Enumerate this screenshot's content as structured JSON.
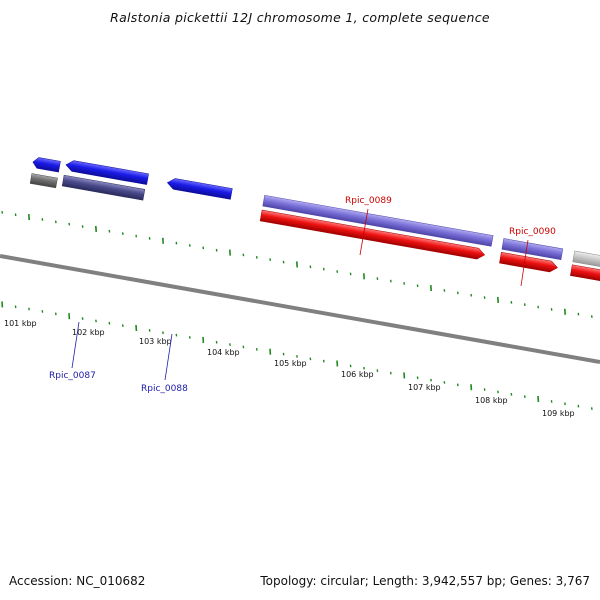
{
  "title": "Ralstonia pickettii 12J chromosome 1, complete sequence",
  "footer": {
    "accession": "Accession: NC_010682",
    "summary": "Topology: circular; Length: 3,942,557 bp; Genes: 3,767"
  },
  "kbp_labels": [
    "101 kbp",
    "102 kbp",
    "103 kbp",
    "104 kbp",
    "105 kbp",
    "106 kbp",
    "107 kbp",
    "108 kbp",
    "109 kbp"
  ],
  "gene_labels": {
    "rpic_0087": "Rpic_0087",
    "rpic_0088": "Rpic_0088",
    "rpic_0089": "Rpic_0089",
    "rpic_0090": "Rpic_0090"
  },
  "colors": {
    "backbone": "#808080",
    "tick": "#1f8a1f",
    "gene_blue": "#1a1ae6",
    "gene_navy": "#4a4a8c",
    "gene_lavender": "#7a72d8",
    "gene_red": "#ee1111",
    "gene_gray": "#6e6e6e",
    "gene_lightgray": "#c8c8c8",
    "label_blue": "#1a1aa8",
    "label_red": "#cc0000"
  }
}
